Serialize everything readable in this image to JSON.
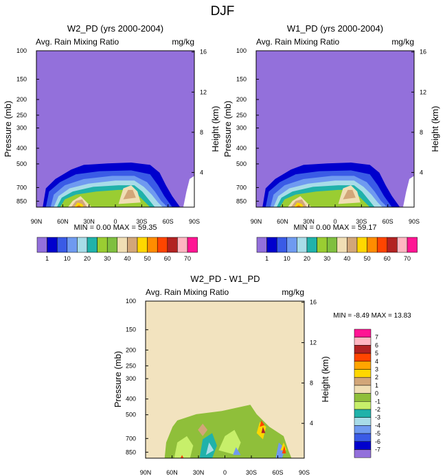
{
  "figure_title": "DJF",
  "colors": {
    "background_purple": "#9370db",
    "background_diff": "#f2e3bf",
    "abs_palette": [
      "#9370db",
      "#0000cd",
      "#3a5be6",
      "#6f9af0",
      "#a8dce8",
      "#20b2aa",
      "#9acd32",
      "#7fbf3f",
      "#f0deb4",
      "#d2a679",
      "#ffd700",
      "#ff8c00",
      "#ff4500",
      "#b22222",
      "#ffb6c1",
      "#ff1493"
    ],
    "diff_palette": [
      "#9370db",
      "#0000cd",
      "#3a5be6",
      "#6f9af0",
      "#a8dce8",
      "#20b2aa",
      "#c7ef6a",
      "#8fbf3a",
      "#f0deb4",
      "#d2a679",
      "#ffd700",
      "#ffa500",
      "#ff4500",
      "#b22222",
      "#ffb6c1",
      "#ff1493"
    ]
  },
  "chart_data": [
    {
      "type": "contour",
      "title": "W2_PD (yrs 2000-2004)",
      "left_label": "Avg. Rain Mixing Ratio",
      "units": "mg/kg",
      "xlabel": "",
      "ylabel": "Pressure (mb)",
      "y2label": "Height (km)",
      "x_ticks": [
        "90N",
        "60N",
        "30N",
        "0",
        "30S",
        "60S",
        "90S"
      ],
      "y_ticks": [
        100,
        150,
        200,
        250,
        300,
        400,
        500,
        700,
        850
      ],
      "y2_ticks": [
        16,
        12,
        8,
        4
      ],
      "ylim": [
        100,
        925
      ],
      "stats": {
        "min": "0.00",
        "max": "59.35"
      },
      "stats_text": "MIN =  0.00  MAX = 59.35",
      "colorbar_labels": [
        "1",
        "10",
        "20",
        "30",
        "40",
        "50",
        "60",
        "70"
      ]
    },
    {
      "type": "contour",
      "title": "W1_PD (yrs 2000-2004)",
      "left_label": "Avg. Rain Mixing Ratio",
      "units": "mg/kg",
      "xlabel": "",
      "ylabel": "Pressure (mb)",
      "y2label": "Height (km)",
      "x_ticks": [
        "90N",
        "60N",
        "30N",
        "0",
        "30S",
        "60S",
        "90S"
      ],
      "y_ticks": [
        100,
        150,
        200,
        250,
        300,
        400,
        500,
        700,
        850
      ],
      "y2_ticks": [
        16,
        12,
        8,
        4
      ],
      "ylim": [
        100,
        925
      ],
      "stats": {
        "min": "0.00",
        "max": "59.17"
      },
      "stats_text": "MIN =  0.00  MAX = 59.17",
      "colorbar_labels": [
        "1",
        "10",
        "20",
        "30",
        "40",
        "50",
        "60",
        "70"
      ]
    },
    {
      "type": "contour",
      "title": "W2_PD - W1_PD",
      "left_label": "Avg. Rain Mixing Ratio",
      "units": "mg/kg",
      "xlabel": "",
      "ylabel": "Pressure (mb)",
      "y2label": "Height (km)",
      "x_ticks": [
        "90N",
        "60N",
        "30N",
        "0",
        "30S",
        "60S",
        "90S"
      ],
      "y_ticks": [
        100,
        150,
        200,
        250,
        300,
        400,
        500,
        700,
        850
      ],
      "y2_ticks": [
        16,
        12,
        8,
        4
      ],
      "ylim": [
        100,
        925
      ],
      "stats": {
        "min": "-8.49",
        "max": "13.83"
      },
      "stats_text": "MIN =  -8.49   MAX =  13.83",
      "colorbar_labels": [
        "7",
        "6",
        "5",
        "4",
        "3",
        "2",
        "1",
        "0",
        "-1",
        "-2",
        "-3",
        "-4",
        "-5",
        "-6",
        "-7"
      ]
    }
  ]
}
